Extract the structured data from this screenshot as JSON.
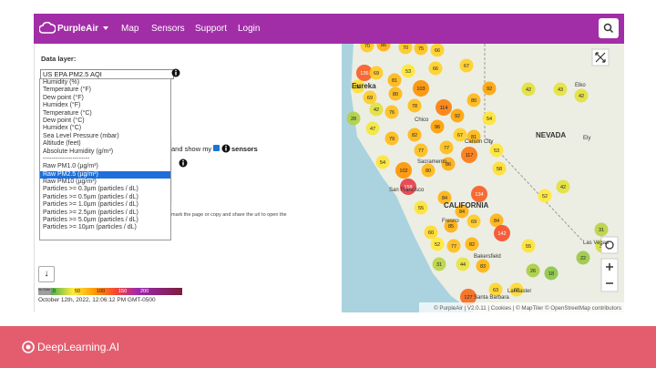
{
  "nav": {
    "brand": "PurpleAir",
    "items": [
      "Map",
      "Sensors",
      "Support",
      "Login"
    ]
  },
  "panel": {
    "data_layer_label": "Data layer:",
    "selected": "US EPA PM2.5 AQI",
    "options": [
      "Humidity (%)",
      "Temperature (°F)",
      "Dew point (°F)",
      "Humidex (°F)",
      "Temperature (°C)",
      "Dew point (°C)",
      "Humidex (°C)",
      "Sea Level Pressure (mbar)",
      "Altitude (feet)",
      "Absolute Humidity (g/m³)",
      "----------------------",
      "Raw PM1.0 (µg/m³)",
      "Raw PM2.5 (µg/m³)",
      "Raw PM10 (µg/m³)",
      "Particles >= 0.3µm (particles / dL)",
      "Particles >= 0.5µm (particles / dL)",
      "Particles >= 1.0µm (particles / dL)",
      "Particles >= 2.5µm (particles / dL)",
      "Particles >= 5.0µm (particles / dL)",
      "Particles >= 10µm (particles / dL)"
    ],
    "highlighted": 12,
    "behind_text_1": "and show my",
    "behind_text_2": "sensors",
    "behind_text_3": "mark the page or copy and share the url to open the",
    "down_button": "↓",
    "legend": {
      "no_data": "No Data",
      "no_data_color": "#9e9e9e",
      "stops": [
        {
          "value": 0,
          "color": "#4caf50"
        },
        {
          "value": 50,
          "color": "#ffeb3b"
        },
        {
          "value": 100,
          "color": "#ff9800"
        },
        {
          "value": 150,
          "color": "#f44336"
        },
        {
          "value": 200,
          "color": "#9c27b0"
        },
        {
          "value": 300,
          "color": "#7b1f3a"
        }
      ]
    },
    "timestamp": "October 12th, 2022, 12:06:12 PM GMT-0500"
  },
  "map": {
    "markers": [
      70,
      86,
      70,
      75,
      66,
      135,
      69,
      56,
      69,
      81,
      80,
      53,
      103,
      66,
      67,
      92,
      42,
      76,
      78,
      114,
      92,
      80,
      28,
      47,
      79,
      82,
      96,
      67,
      81,
      54,
      53,
      77,
      77,
      117,
      58,
      42,
      43,
      42,
      52,
      42,
      102,
      80,
      86,
      134,
      158,
      55,
      84,
      84,
      60,
      85,
      69,
      84,
      55,
      142,
      52,
      77,
      82,
      44,
      83,
      31,
      127,
      63,
      60,
      26,
      18,
      22,
      38,
      31,
      54
    ],
    "labels": [
      "Eureka",
      "Chico",
      "Sacramento",
      "Carson City",
      "San Francisco",
      "CALIFORNIA",
      "Fresno",
      "Bakersfield",
      "Santa Barbara",
      "Lancaster",
      "NEVADA",
      "Elko",
      "Ely",
      "Las Vegas"
    ],
    "attribution": "© PurpleAir | V2.0.11 | Cookies | © MapTiler © OpenStreetMap contributors"
  },
  "footer": {
    "brand": "DeepLearning.AI"
  }
}
